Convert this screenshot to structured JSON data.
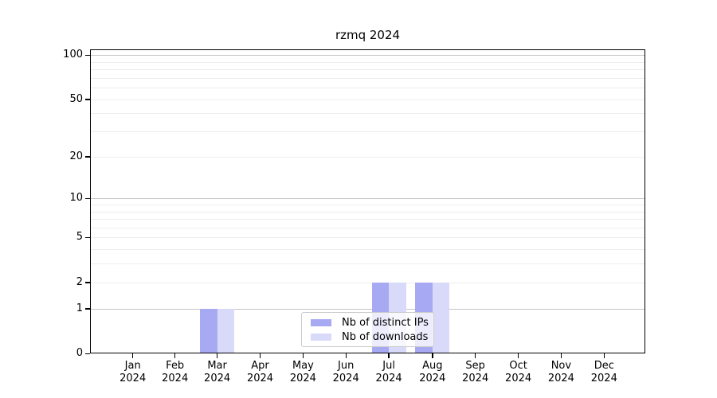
{
  "chart_data": {
    "type": "bar",
    "title": "rzmq 2024",
    "categories": [
      "Jan",
      "Feb",
      "Mar",
      "Apr",
      "May",
      "Jun",
      "Jul",
      "Aug",
      "Sep",
      "Oct",
      "Nov",
      "Dec"
    ],
    "x_year_label": "2024",
    "series": [
      {
        "name": "Nb of distinct IPs",
        "color": "#a8a9f3",
        "values": [
          0,
          0,
          1,
          0,
          0,
          0,
          2,
          2,
          0,
          0,
          0,
          0
        ]
      },
      {
        "name": "Nb of downloads",
        "color": "#d9daf9",
        "values": [
          0,
          0,
          1,
          0,
          0,
          0,
          2,
          2,
          0,
          0,
          0,
          0
        ]
      }
    ],
    "yticks": [
      0,
      1,
      2,
      5,
      10,
      20,
      50,
      100
    ],
    "minor_gridlines": [
      3,
      4,
      6,
      7,
      8,
      9,
      30,
      40,
      60,
      70,
      80,
      90
    ],
    "ylim": [
      0,
      100
    ],
    "yscale": "log1p",
    "grid": true,
    "legend_position": "inside lower center",
    "colors": {
      "major_gridline": "#c6c6c6",
      "minor_gridline": "#ededed",
      "axis": "#000000",
      "background": "#ffffff"
    }
  }
}
